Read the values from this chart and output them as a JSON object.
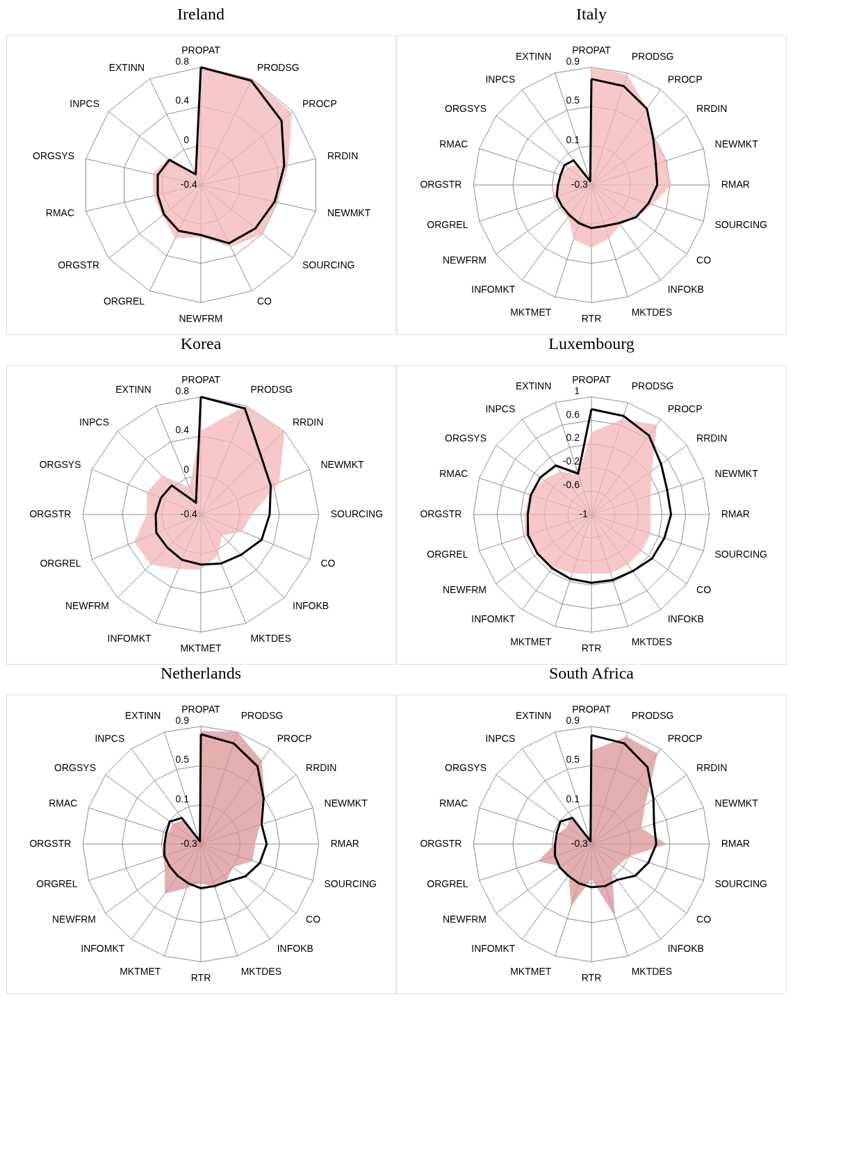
{
  "chart_data": [
    {
      "type": "radar",
      "title": "Ireland",
      "grid": true,
      "ylim": [
        -0.4,
        0.8
      ],
      "yticks": [
        -0.4,
        0,
        0.4,
        0.8
      ],
      "categories": [
        "PROPAT",
        "PRODSG",
        "PROCP",
        "RRDIN",
        "NEWMKT",
        "SOURCING",
        "CO",
        "NEWFRM",
        "ORGREL",
        "ORGSTR",
        "RMAC",
        "ORGSYS",
        "INPCS",
        "EXTINN"
      ],
      "series": [
        {
          "type": "area",
          "color": "#f4b6b6",
          "values": [
            0.8,
            0.8,
            0.78,
            0.51,
            0.4,
            0.4,
            0.3,
            0.13,
            0.2,
            0.1,
            0.09,
            0.1,
            0.03,
            -0.28
          ]
        },
        {
          "color": "#000000",
          "values": [
            0.8,
            0.78,
            0.65,
            0.47,
            0.37,
            0.31,
            0.26,
            0.11,
            0.12,
            0.08,
            0.05,
            0.05,
            0.01,
            -0.28
          ]
        }
      ]
    },
    {
      "type": "radar",
      "title": "Italy",
      "grid": true,
      "ylim": [
        -0.3,
        0.9
      ],
      "yticks": [
        -0.3,
        0.1,
        0.5,
        0.9
      ],
      "categories": [
        "PROPAT",
        "PRODSG",
        "PROCP",
        "RRDIN",
        "NEWMKT",
        "RMAR",
        "SOURCING",
        "CO",
        "INFOKB",
        "MKTDES",
        "RTR",
        "MKTMET",
        "INFOMKT",
        "NEWFRM",
        "ORGREL",
        "ORGSTR",
        "RMAC",
        "ORGSYS",
        "INPCS",
        "EXTINN"
      ],
      "series": [
        {
          "type": "area",
          "color": "#f4b6b6",
          "values": [
            0.9,
            0.88,
            0.66,
            0.5,
            0.49,
            0.51,
            0.35,
            0.26,
            0.2,
            0.27,
            0.34,
            0.28,
            0.1,
            0.07,
            0.1,
            0.05,
            0.03,
            0.0,
            -0.05,
            -0.25
          ]
        },
        {
          "color": "#000000",
          "values": [
            0.78,
            0.76,
            0.66,
            0.48,
            0.39,
            0.37,
            0.31,
            0.26,
            0.18,
            0.14,
            0.14,
            0.11,
            0.08,
            0.07,
            0.07,
            0.04,
            0.03,
            0.04,
            0.01,
            -0.26
          ]
        }
      ]
    },
    {
      "type": "radar",
      "title": "Korea",
      "grid": true,
      "ylim": [
        -0.4,
        0.8
      ],
      "yticks": [
        -0.4,
        0,
        0.4,
        0.8
      ],
      "categories": [
        "PROPAT",
        "PRODSG",
        "RRDIN",
        "NEWMKT",
        "SOURCING",
        "CO",
        "INFOKB",
        "MKTDES",
        "MKTMET",
        "INFOMKT",
        "NEWFRM",
        "ORGREL",
        "ORGSTR",
        "ORGSYS",
        "INPCS",
        "EXTINN"
      ],
      "series": [
        {
          "type": "area",
          "color": "#f4b6b6",
          "values": [
            0.45,
            0.8,
            0.8,
            0.46,
            0.12,
            0.05,
            -0.1,
            0.05,
            0.16,
            0.2,
            0.32,
            0.33,
            0.15,
            0.19,
            0.16,
            -0.1
          ]
        },
        {
          "color": "#000000",
          "values": [
            0.8,
            0.77,
            0.46,
            0.37,
            0.3,
            0.27,
            0.18,
            0.14,
            0.11,
            0.1,
            0.08,
            0.09,
            0.06,
            0.04,
            0.02,
            -0.27
          ]
        }
      ]
    },
    {
      "type": "radar",
      "title": "Luxembourg",
      "grid": true,
      "ylim": [
        -1,
        1
      ],
      "yticks": [
        -1,
        -0.6,
        -0.2,
        0.2,
        0.6,
        1
      ],
      "categories": [
        "PROPAT",
        "PRODSG",
        "PROCP",
        "RRDIN",
        "NEWMKT",
        "RMAR",
        "SOURCING",
        "CO",
        "INFOKB",
        "MKTDES",
        "RTR",
        "MKTMET",
        "INFOMKT",
        "NEWFRM",
        "ORGREL",
        "ORGSTR",
        "RMAC",
        "ORGSYS",
        "INPCS",
        "EXTINN"
      ],
      "series": [
        {
          "type": "area",
          "color": "#f4b6b6",
          "values": [
            0.39,
            0.7,
            0.88,
            0.26,
            0.05,
            0.0,
            0.05,
            0.05,
            0.05,
            0.05,
            0.0,
            0.05,
            0.1,
            0.12,
            0.18,
            0.13,
            0.1,
            0.0,
            -0.1,
            -0.3
          ]
        },
        {
          "color": "#000000",
          "values": [
            0.79,
            0.76,
            0.66,
            0.46,
            0.35,
            0.35,
            0.3,
            0.27,
            0.19,
            0.17,
            0.16,
            0.15,
            0.13,
            0.13,
            0.13,
            0.08,
            0.08,
            0.07,
            0.03,
            -0.27
          ]
        }
      ]
    },
    {
      "type": "radar",
      "title": "Netherlands",
      "grid": true,
      "ylim": [
        -0.3,
        0.9
      ],
      "yticks": [
        -0.3,
        0.1,
        0.5,
        0.9
      ],
      "categories": [
        "PROPAT",
        "PRODSG",
        "PROCP",
        "RRDIN",
        "NEWMKT",
        "RMAR",
        "SOURCING",
        "CO",
        "INFOKB",
        "MKTDES",
        "RTR",
        "MKTMET",
        "INFOMKT",
        "NEWFRM",
        "ORGREL",
        "ORGSTR",
        "RMAC",
        "ORGSYS",
        "INPCS",
        "EXTINN"
      ],
      "series": [
        {
          "type": "area",
          "color": "#d99694",
          "values": [
            0.85,
            0.9,
            0.75,
            0.5,
            0.33,
            0.25,
            0.25,
            0.1,
            0.15,
            0.17,
            0.09,
            0.17,
            0.32,
            0.15,
            0.1,
            0.07,
            0.05,
            0.05,
            0.0,
            -0.27
          ]
        },
        {
          "color": "#000000",
          "values": [
            0.82,
            0.78,
            0.68,
            0.49,
            0.35,
            0.37,
            0.33,
            0.26,
            0.17,
            0.15,
            0.15,
            0.12,
            0.1,
            0.09,
            0.09,
            0.07,
            0.07,
            0.09,
            0.03,
            -0.27
          ]
        }
      ]
    },
    {
      "type": "radar",
      "title": "South Africa",
      "grid": true,
      "ylim": [
        -0.3,
        0.9
      ],
      "yticks": [
        -0.3,
        0.1,
        0.5,
        0.9
      ],
      "categories": [
        "PROPAT",
        "PRODSG",
        "PROCP",
        "RRDIN",
        "NEWMKT",
        "RMAR",
        "SOURCING",
        "CO",
        "INFOKB",
        "MKTDES",
        "RTR",
        "MKTMET",
        "INFOMKT",
        "NEWFRM",
        "ORGREL",
        "ORGSTR",
        "RMAC",
        "ORGSYS",
        "INPCS",
        "EXTINN"
      ],
      "series": [
        {
          "type": "area",
          "color": "#d99694",
          "values": [
            0.65,
            0.85,
            0.84,
            0.37,
            0.23,
            0.46,
            0.1,
            0.05,
            0.05,
            0.47,
            0.05,
            0.36,
            0.09,
            0.08,
            0.27,
            0.07,
            0.05,
            0.0,
            0.06,
            -0.25
          ]
        },
        {
          "color": "#000000",
          "values": [
            0.81,
            0.78,
            0.67,
            0.48,
            0.37,
            0.36,
            0.31,
            0.25,
            0.15,
            0.15,
            0.14,
            0.12,
            0.1,
            0.1,
            0.09,
            0.07,
            0.07,
            0.09,
            0.03,
            -0.27
          ]
        }
      ]
    }
  ]
}
